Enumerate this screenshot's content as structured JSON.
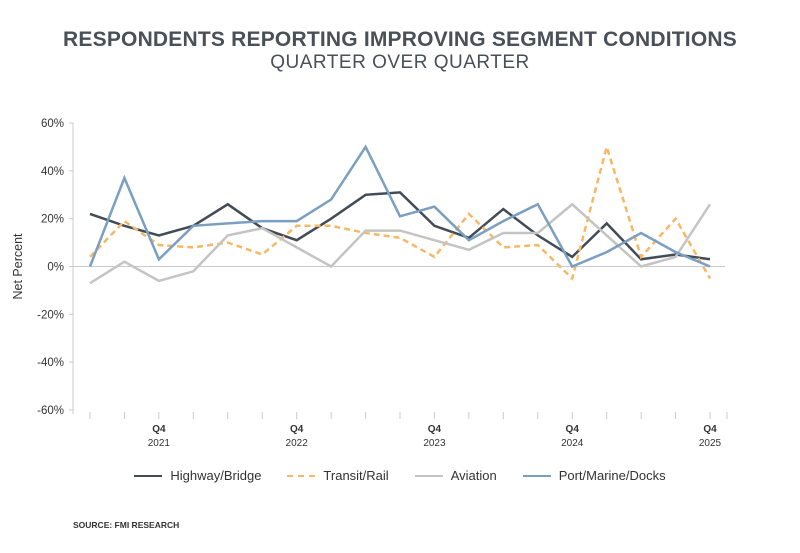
{
  "title": "RESPONDENTS REPORTING IMPROVING SEGMENT CONDITIONS",
  "subtitle": "QUARTER OVER QUARTER",
  "source": "SOURCE: FMI RESEARCH",
  "chart_data": {
    "type": "line",
    "title": "RESPONDENTS REPORTING IMPROVING SEGMENT CONDITIONS",
    "subtitle": "QUARTER OVER QUARTER",
    "xlabel": "",
    "ylabel": "Net Percent",
    "ylim": [
      -60,
      60
    ],
    "yticks": [
      "-60%",
      "-40%",
      "-20%",
      "0%",
      "20%",
      "40%",
      "60%"
    ],
    "ytick_values": [
      -60,
      -40,
      -20,
      0,
      20,
      40,
      60
    ],
    "x": [
      "Q2 2021",
      "Q3 2021",
      "Q4 2021",
      "Q1 2022",
      "Q2 2022",
      "Q3 2022",
      "Q4 2022",
      "Q1 2023",
      "Q2 2023",
      "Q3 2023",
      "Q4 2023",
      "Q1 2024",
      "Q2 2024",
      "Q3 2024",
      "Q4 2024",
      "Q1 2025",
      "Q2 2025",
      "Q3 2025",
      "Q4 2025"
    ],
    "xtick_labels": [
      {
        "index": 2,
        "q": "Q4",
        "year": "2021"
      },
      {
        "index": 6,
        "q": "Q4",
        "year": "2022"
      },
      {
        "index": 10,
        "q": "Q4",
        "year": "2023"
      },
      {
        "index": 14,
        "q": "Q4",
        "year": "2024"
      },
      {
        "index": 18,
        "q": "Q4",
        "year": "2025"
      }
    ],
    "grid": false,
    "legend_position": "bottom",
    "series": [
      {
        "name": "Highway/Bridge",
        "color": "#434c56",
        "dash": false,
        "values": [
          22,
          17,
          13,
          17,
          26,
          16,
          11,
          20,
          30,
          31,
          17,
          12,
          24,
          13,
          4,
          18,
          3,
          5,
          3
        ]
      },
      {
        "name": "Transit/Rail",
        "color": "#f5b966",
        "dash": true,
        "values": [
          4,
          19,
          9,
          8,
          10,
          5,
          17,
          17,
          14,
          12,
          4,
          22,
          8,
          9,
          -5,
          50,
          4,
          20,
          -5
        ]
      },
      {
        "name": "Aviation",
        "color": "#c4c4c2",
        "dash": false,
        "values": [
          -7,
          2,
          -6,
          -2,
          13,
          16,
          8,
          0,
          15,
          15,
          11,
          7,
          14,
          14,
          26,
          13,
          0,
          4,
          26
        ]
      },
      {
        "name": "Port/Marine/Docks",
        "color": "#7a9fc0",
        "dash": false,
        "values": [
          0,
          37,
          3,
          17,
          18,
          19,
          19,
          28,
          50,
          21,
          25,
          11,
          19,
          26,
          0,
          6,
          14,
          6,
          0
        ]
      }
    ]
  }
}
